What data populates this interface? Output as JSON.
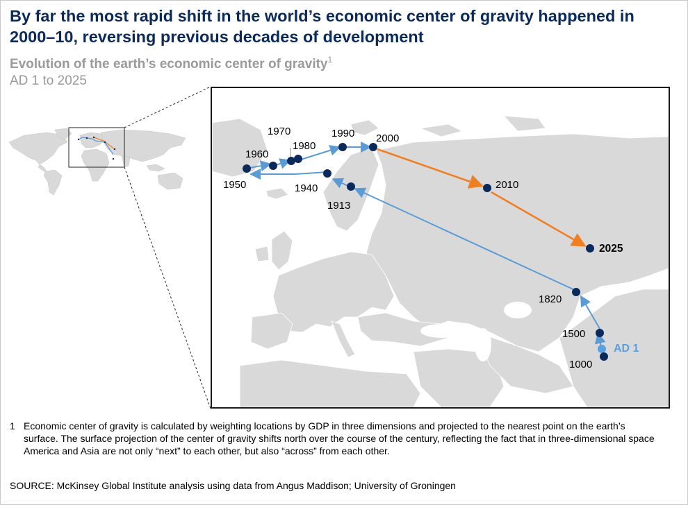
{
  "title": "By far the most rapid shift in the world’s economic center of gravity happened in 2000–10, reversing previous decades of development",
  "subtitle": "Evolution of the earth’s economic center of gravity",
  "subtitle_footnote_mark": "1",
  "date_range": "AD 1 to 2025",
  "colors": {
    "title": "#0b2a5b",
    "historical_path": "#5b9bd5",
    "projection_path": "#f07f24",
    "point": "#0b2a5b",
    "ad1_point": "#5aa0e0",
    "land": "#d9d9d9"
  },
  "points": [
    {
      "label": "AD 1",
      "style": "ad1"
    },
    {
      "label": "1000"
    },
    {
      "label": "1500"
    },
    {
      "label": "1820"
    },
    {
      "label": "1913"
    },
    {
      "label": "1940"
    },
    {
      "label": "1950"
    },
    {
      "label": "1960"
    },
    {
      "label": "1970"
    },
    {
      "label": "1980"
    },
    {
      "label": "1990"
    },
    {
      "label": "2000"
    },
    {
      "label": "2010"
    },
    {
      "label": "2025",
      "style": "bold"
    }
  ],
  "footnote": {
    "number": "1",
    "text": "Economic center of gravity is calculated by weighting locations by GDP in three dimensions and projected to the nearest point on the earth’s surface. The surface projection of the center of gravity shifts north over the course of the century, reflecting the fact that in three-dimensional space America and Asia are not only “next” to each other, but also “across” from each other."
  },
  "source": "SOURCE: McKinsey Global Institute analysis using data from Angus Maddison; University of Groningen"
}
